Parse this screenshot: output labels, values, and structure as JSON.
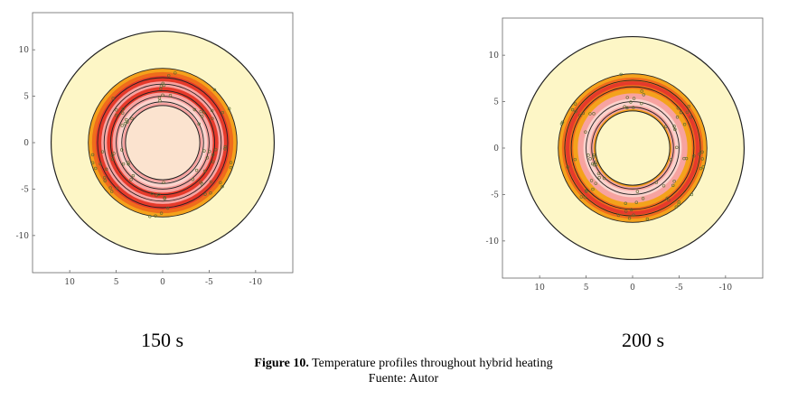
{
  "figure": {
    "panels": [
      {
        "label": "150 s",
        "x_ticks": [
          "10",
          "5",
          "0",
          "-5",
          "-10"
        ],
        "y_ticks": [
          "10",
          "5",
          "0",
          "-5",
          "-10"
        ],
        "x_tick_values": [
          10,
          5,
          0,
          -5,
          -10
        ],
        "y_tick_values": [
          10,
          5,
          0,
          -5,
          -10
        ],
        "xlim": [
          14,
          -14
        ],
        "ylim": [
          -14,
          14
        ],
        "outer_radius": 12,
        "mid_radius": 8,
        "inner_radius": 4
      },
      {
        "label": "200 s",
        "x_ticks": [
          "10",
          "5",
          "0",
          "-5",
          "-10"
        ],
        "y_ticks": [
          "10",
          "5",
          "0",
          "-5",
          "-10"
        ],
        "x_tick_values": [
          10,
          5,
          0,
          -5,
          -10
        ],
        "y_tick_values": [
          10,
          5,
          0,
          -5,
          -10
        ],
        "xlim": [
          14,
          -14
        ],
        "ylim": [
          -14,
          14
        ],
        "outer_radius": 12,
        "mid_radius": 8,
        "inner_radius": 4
      }
    ],
    "caption_bold": "Figure 10.",
    "caption_text": " Temperature profiles throughout hybrid heating",
    "source": "Fuente: Autor",
    "colors": {
      "outer_region": "#fdf6c6",
      "inner_core": "#fbe3cf",
      "orange": "#f4a21c",
      "deep_orange": "#ef6b1c",
      "red": "#e63a2b",
      "pink": "#f7a3a0",
      "light_pink": "#fbd2cc",
      "contour_line": "#222222",
      "axis": "#666666"
    }
  }
}
